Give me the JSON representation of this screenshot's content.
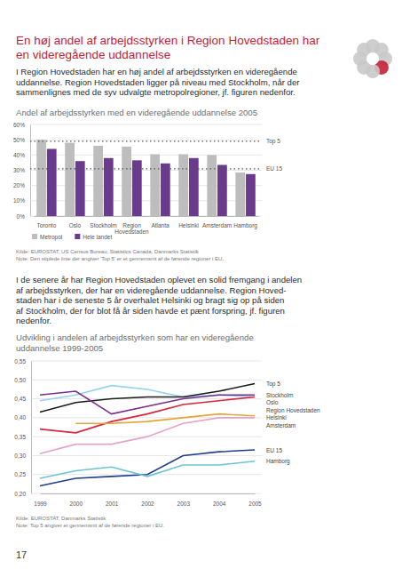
{
  "page": {
    "title": [
      "En høj andel af arbejdsstyrken i Region Hovedstaden har",
      "en videregående uddannelse"
    ],
    "paragraphs": [
      [
        "I Region Hovedstaden har en høj andel af arbejdsstyrken en videregående",
        "uddannelse. Region Hovedstaden ligger på niveau med Stockholm, når der",
        "sammenlignes med de syv udvalgte metropolregioner, jf. figuren nedenfor."
      ],
      [
        "I de senere år har Region Hovedstaden oplevet en solid fremgang i andelen",
        "af arbejdsstyrken, der har en videregående uddannelse. Region Hoved-",
        "staden har i de seneste 5 år overhalet Helsinki og bragt sig op på siden",
        "af Stockholm, der for blot få år siden havde et pænt forspring, jf. figuren",
        "nedenfor."
      ]
    ],
    "page_number": "17"
  },
  "chart_data": [
    {
      "type": "bar",
      "title": [
        "Andel af arbejdsstyrken med en videregående uddannelse 2005"
      ],
      "categories": [
        "Toronto",
        "Oslo",
        "Stockholm",
        "Region Hovedstaden",
        "Atlanta",
        "Helsinki",
        "Amsterdam",
        "Hamborg"
      ],
      "series": [
        {
          "name": "Metropol",
          "color": "#bdbdbd",
          "values": [
            50,
            48,
            46,
            45.5,
            40.5,
            40.5,
            40,
            28.5
          ]
        },
        {
          "name": "Hele landet",
          "color": "#6b3a8e",
          "values": [
            44,
            36,
            38,
            36.5,
            34.5,
            38,
            33.5,
            27.5
          ]
        }
      ],
      "ylim": [
        0,
        60
      ],
      "yticks": [
        {
          "value": 0,
          "label": "0%"
        },
        {
          "value": 10,
          "label": "10%"
        },
        {
          "value": 20,
          "label": "20%"
        },
        {
          "value": 30,
          "label": "30%"
        },
        {
          "value": 40,
          "label": "40%"
        },
        {
          "value": 50,
          "label": "50%"
        },
        {
          "value": 60,
          "label": "60%"
        }
      ],
      "grid": true,
      "legend": "bottom",
      "reference_lines": [
        {
          "name": "Top 5",
          "value": 49
        },
        {
          "name": "EU 15",
          "value": 31
        }
      ],
      "source": "Kilde: EUROSTAT, US Census Bureau, Statistics Canada, Danmarks Statistik",
      "note": "Note: Den stiplede linie der angiver 'Top 5' er et gennemsnit af de førende regioner i EU."
    },
    {
      "type": "line",
      "title": [
        "Udvikling i andelen af arbejdsstyrken som har en videregående",
        "uddannelse 1999-2005"
      ],
      "x": [
        1999,
        2000,
        2001,
        2002,
        2003,
        2004,
        2005
      ],
      "series": [
        {
          "name": "Oslo",
          "color": "#92d2ee",
          "values": [
            0.445,
            0.46,
            0.485,
            0.475,
            0.455,
            0.46,
            0.455
          ]
        },
        {
          "name": "Top 5",
          "color": "#1a1a1a",
          "values": [
            0.415,
            0.44,
            0.45,
            0.455,
            0.455,
            0.47,
            0.49
          ]
        },
        {
          "name": "Region Hovedstaden",
          "color": "#d7263d",
          "values": [
            0.37,
            0.36,
            0.39,
            0.41,
            0.435,
            0.445,
            0.455
          ]
        },
        {
          "name": "Stockholm",
          "color": "#7b2d8e",
          "values": [
            0.46,
            0.47,
            0.41,
            0.43,
            0.45,
            0.46,
            0.46
          ]
        },
        {
          "name": "Helsinki",
          "color": "#e3a53a",
          "values": [
            null,
            0.385,
            0.385,
            0.39,
            0.4,
            0.41,
            0.405
          ]
        },
        {
          "name": "Amsterdam",
          "color": "#e4a3c8",
          "values": [
            0.305,
            0.33,
            0.33,
            0.35,
            0.385,
            0.4,
            0.4
          ]
        },
        {
          "name": "EU 15",
          "color": "#1f3d8a",
          "values": [
            0.22,
            0.24,
            0.245,
            0.25,
            0.3,
            0.31,
            0.315
          ]
        },
        {
          "name": "Hamborg",
          "color": "#6cc5d0",
          "values": [
            0.24,
            0.26,
            0.27,
            0.245,
            0.275,
            0.275,
            0.285
          ]
        }
      ],
      "xlim": [
        1999,
        2005
      ],
      "xticks": [
        1999,
        2000,
        2001,
        2002,
        2003,
        2004,
        2005
      ],
      "ylim": [
        0.2,
        0.55
      ],
      "yticks": [
        {
          "value": 0.2,
          "label": "0,20"
        },
        {
          "value": 0.25,
          "label": "0,25"
        },
        {
          "value": 0.3,
          "label": "0,30"
        },
        {
          "value": 0.35,
          "label": "0,35"
        },
        {
          "value": 0.4,
          "label": "0,40"
        },
        {
          "value": 0.45,
          "label": "0,45"
        },
        {
          "value": 0.5,
          "label": "0,50"
        },
        {
          "value": 0.55,
          "label": "0,55"
        }
      ],
      "grid": true,
      "source": "Kilde: EUROSTAT, Danmarks Statistik",
      "note": "Note: Top 5 angiver et gennemsnit af de førende regioner i EU."
    }
  ]
}
